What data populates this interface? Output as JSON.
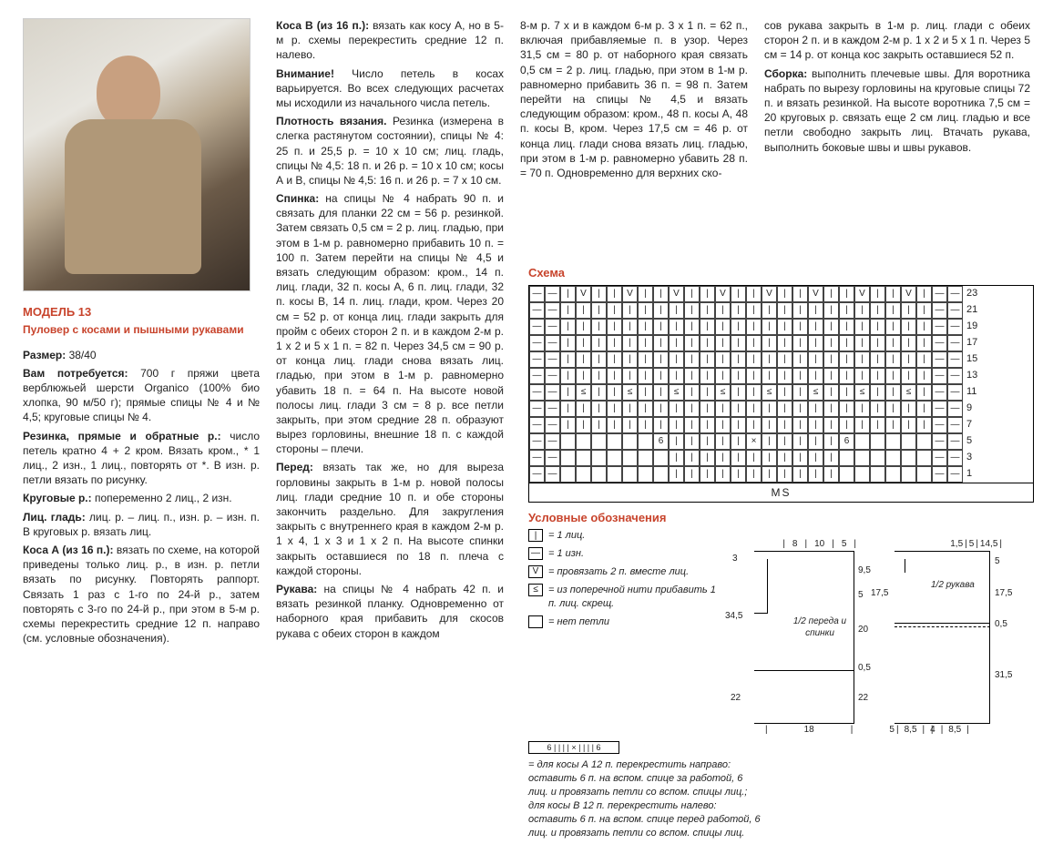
{
  "model": {
    "number": "МОДЕЛЬ 13",
    "name": "Пуловер с косами и пышными рукавами"
  },
  "col1": {
    "size_label": "Размер:",
    "size_value": "38/40",
    "materials_label": "Вам потребуется:",
    "materials": "700 г пряжи цвета верблюжьей шерсти Organico (100% био хлопка, 90 м/50 г); прямые спицы № 4 и № 4,5; круговые спицы № 4.",
    "rib_label": "Резинка, прямые и обратные р.:",
    "rib": "число петель кратно 4 + 2 кром. Вязать кром., * 1 лиц., 2 изн., 1 лиц., повторять от *. В изн. р. петли вязать по рисунку.",
    "circ_label": "Круговые р.:",
    "circ": "попеременно 2 лиц., 2 изн.",
    "stst_label": "Лиц. гладь:",
    "stst": "лиц. р. – лиц. п., изн. р. – изн. п. В круговых р. вязать лиц.",
    "cableA_label": "Коса А (из 16 п.):",
    "cableA": "вязать по схеме, на которой приведены только лиц. р., в изн. р. петли вязать по рисунку. Повторять раппорт. Связать 1 раз с 1-го по 24-й р., затем повторять с 3-го по 24-й р., при этом в 5-м р. схемы перекрестить средние 12 п. направо (см. условные обозначения)."
  },
  "col2": {
    "cableB_label": "Коса В (из 16 п.):",
    "cableB": "вязать как косу А, но в 5-м р. схемы перекрестить средние 12 п. налево.",
    "warn_label": "Внимание!",
    "warn": "Число петель в косах варьируется. Во всех следующих расчетах мы исходили из начального числа петель.",
    "gauge_label": "Плотность вязания.",
    "gauge": "Резинка (измерена в слегка растянутом состоянии), спицы № 4: 25 п. и 25,5 р. = 10 х 10 см; лиц. гладь, спицы № 4,5: 18 п. и 26 р. = 10 х 10 см; косы А и В, спицы № 4,5: 16 п. и 26 р. = 7 х 10 см.",
    "back_label": "Спинка:",
    "back": "на спицы № 4 набрать 90 п. и связать для планки 22 см = 56 р. резинкой. Затем связать 0,5 см = 2 р. лиц. гладью, при этом в 1-м р. равномерно прибавить 10 п. = 100 п. Затем перейти на спицы № 4,5 и вязать следующим образом: кром., 14 п. лиц. глади, 32 п. косы А, 6 п. лиц. глади, 32 п. косы В, 14 п. лиц. глади, кром. Через 20 см = 52 р. от конца лиц. глади закрыть для пройм с обеих сторон 2 п. и в каждом 2-м р. 1 х 2 и 5 х 1 п. = 82 п. Через 34,5 см = 90 р. от конца лиц. глади снова вязать лиц. гладью, при этом в 1-м р. равномерно убавить 18 п. = 64 п. На высоте новой полосы лиц. глади 3 см = 8 р. все петли закрыть, при этом средние 28 п. образуют вырез горловины, внешние 18 п. с каждой стороны – плечи.",
    "front_label": "Перед:",
    "front": "вязать так же, но для выреза горловины закрыть в 1-м р. новой полосы лиц. глади средние 10 п. и обе стороны закончить раздельно. Для закругления закрыть с внутреннего края в каждом 2-м р. 1 х 4, 1 х 3 и 1 х 2 п. На высоте спинки закрыть оставшиеся по 18 п. плеча с каждой стороны.",
    "sleeve_label": "Рукава:",
    "sleeve": "на спицы № 4 набрать 42 п. и вязать резинкой планку. Одновременно от наборного края прибавить для скосов рукава с обеих сторон в каждом"
  },
  "col3": {
    "p1": "8-м р. 7 х и в каждом 6-м р. 3 х 1 п. = 62 п., включая прибавляемые п. в узор. Через 31,5 см = 80 р. от наборного края связать 0,5 см = 2 р. лиц. гладью, при этом в 1-м р. равномерно прибавить 36 п. = 98 п. Затем перейти на спицы № 4,5 и вязать следующим образом: кром., 48 п. косы А, 48 п. косы В, кром. Через 17,5 см = 46 р. от конца лиц. глади снова вязать лиц. гладью, при этом в 1-м р. равномерно убавить 28 п. = 70 п. Одновременно для верхних ско-"
  },
  "col4": {
    "p1": "сов рукава закрыть в 1-м р. лиц. глади с обеих сторон 2 п. и в каждом 2-м р. 1 х 2 и 5 х 1 п. Через 5 см = 14 р. от конца кос закрыть оставшиеся 52 п.",
    "finish_label": "Сборка:",
    "finish": "выполнить плечевые швы. Для воротника набрать по вырезу горловины на круговые спицы 72 п. и вязать резинкой. На высоте воротника 7,5 см = 20 круговых р. связать еще 2 см лиц. гладью и все петли свободно закрыть лиц. Втачать рукава, выполнить боковые швы и швы рукавов."
  },
  "chart": {
    "label": "Схема",
    "cols": 24,
    "row_numbers": [
      23,
      21,
      19,
      17,
      15,
      13,
      11,
      9,
      7,
      5,
      3,
      1
    ],
    "ms_label": "MS"
  },
  "legend": {
    "label": "Условные обозначения",
    "items": [
      {
        "sym": "|",
        "txt": "= 1 лиц."
      },
      {
        "sym": "—",
        "txt": "= 1 изн."
      },
      {
        "sym": "V",
        "txt": "= провязать 2 п. вместе лиц."
      },
      {
        "sym": "≤",
        "txt": "= из поперечной нити прибавить 1 п. лиц. скрещ."
      },
      {
        "sym": " ",
        "txt": "= нет петли"
      }
    ],
    "cable_sym_label": "6 — — — — × — — — — 6",
    "cable_text": "= для косы А 12 п. перекрестить направо: оставить 6 п. на вспом. спице за работой, 6 лиц. и провязать петли со вспом. спицы лиц.; для косы В 12 п. перекрестить налево: оставить 6 п. на вспом. спице перед работой, 6 лиц. и провязать петли со вспом. спицы лиц."
  },
  "schematic": {
    "body": {
      "label": "1/2 переда и спинки",
      "top_meas": [
        "8",
        "10",
        "5"
      ],
      "left_meas": [
        "3",
        "34,5",
        "22"
      ],
      "right_meas": [
        "9,5",
        "5",
        "20",
        "0,5",
        "22"
      ],
      "bottom_meas": [
        "18",
        "5"
      ]
    },
    "sleeve": {
      "label": "1/2 рукава",
      "top_meas": [
        "1,5",
        "5",
        "14,5"
      ],
      "left_meas": [
        "17,5"
      ],
      "right_meas": [
        "5",
        "17,5",
        "0,5",
        "31,5"
      ],
      "bottom_meas": [
        "8,5",
        "4",
        "8,5"
      ]
    }
  }
}
